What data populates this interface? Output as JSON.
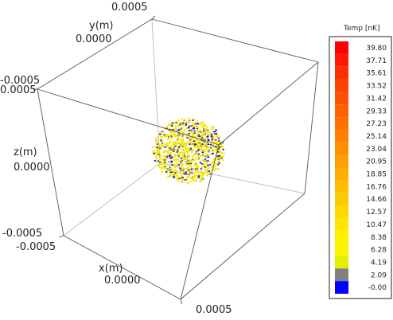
{
  "chart_data": {
    "type": "scatter",
    "title": "",
    "x_axis": {
      "label": "x(m)",
      "ticks": [
        "-0.0005",
        "0.0000",
        "0.0005"
      ],
      "range": [
        -0.0005,
        0.0005
      ]
    },
    "y_axis": {
      "label": "y(m)",
      "ticks": [
        "-0.0005",
        "0.0000",
        "0.0005"
      ],
      "range": [
        -0.0005,
        0.0005
      ]
    },
    "z_axis": {
      "label": "z(m)",
      "ticks": [
        "0.0005",
        "0.0000",
        "-0.0005"
      ],
      "range": [
        -0.0005,
        0.0005
      ]
    },
    "cloud": {
      "center": [
        0.0,
        0.0,
        0.0
      ],
      "radius_m": 9e-05,
      "point_count": 900,
      "dominant_color": "#f5e600",
      "secondary_color": "#1a1aa6"
    },
    "legend": {
      "title": "Temp [nK]",
      "placement": "right",
      "entries": [
        {
          "label": "39.80",
          "color": "#ff0000"
        },
        {
          "label": "37.71",
          "color": "#ff1a00"
        },
        {
          "label": "35.61",
          "color": "#ff2e00"
        },
        {
          "label": "33.52",
          "color": "#ff4000"
        },
        {
          "label": "31.42",
          "color": "#ff5200"
        },
        {
          "label": "29.33",
          "color": "#ff6100"
        },
        {
          "label": "27.23",
          "color": "#ff7000"
        },
        {
          "label": "25.14",
          "color": "#ff8000"
        },
        {
          "label": "23.04",
          "color": "#ff8f00"
        },
        {
          "label": "20.95",
          "color": "#ff9e00"
        },
        {
          "label": "18.85",
          "color": "#ffad00"
        },
        {
          "label": "16.76",
          "color": "#ffbc00"
        },
        {
          "label": "14.66",
          "color": "#ffca00"
        },
        {
          "label": "12.57",
          "color": "#ffd800"
        },
        {
          "label": "10.47",
          "color": "#ffe500"
        },
        {
          "label": "8.38",
          "color": "#fff000"
        },
        {
          "label": "6.28",
          "color": "#fbf500"
        },
        {
          "label": "4.19",
          "color": "#e6ee00"
        },
        {
          "label": "2.09",
          "color": "#808080"
        },
        {
          "label": "-0.00",
          "color": "#0000ff"
        }
      ]
    }
  }
}
